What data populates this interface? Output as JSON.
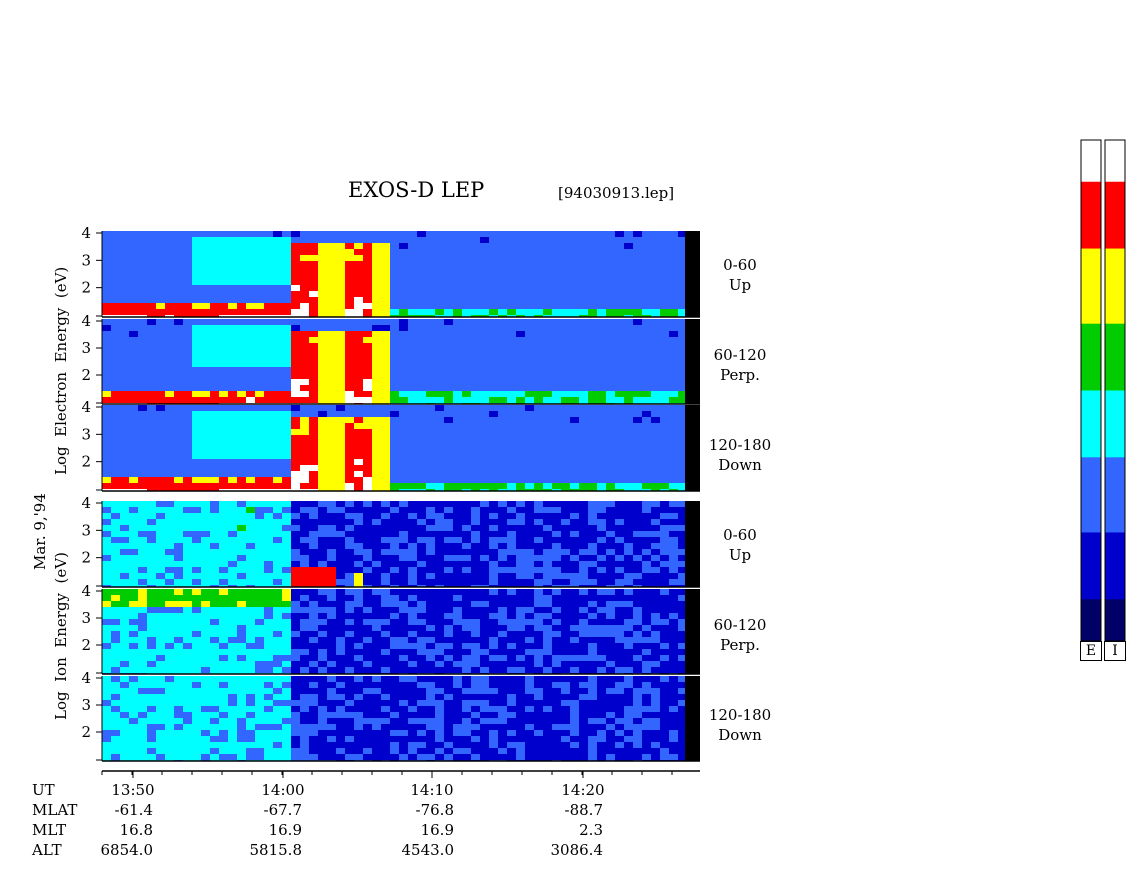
{
  "chart_data": {
    "type": "heatmap",
    "title": "EXOS-D LEP",
    "file_label": "[94030913.lep]",
    "date_label": "Mar. 9,'94",
    "electron_ylabel": "Log  Electron  Energy  (eV)",
    "ion_ylabel": "Log  Ion  Energy  (eV)",
    "y_ticks": [
      "4",
      "3",
      "2"
    ],
    "ylim": [
      1,
      4
    ],
    "panels": [
      {
        "species": "Electron",
        "pitch": "0-60",
        "direction": "Up"
      },
      {
        "species": "Electron",
        "pitch": "60-120",
        "direction": "Perp."
      },
      {
        "species": "Electron",
        "pitch": "120-180",
        "direction": "Down"
      },
      {
        "species": "Ion",
        "pitch": "0-60",
        "direction": "Up"
      },
      {
        "species": "Ion",
        "pitch": "60-120",
        "direction": "Perp."
      },
      {
        "species": "Ion",
        "pitch": "120-180",
        "direction": "Down"
      }
    ],
    "x_axis": {
      "tick_labels": [
        "13:50",
        "14:00",
        "14:10",
        "14:20"
      ],
      "rows": [
        {
          "label": "UT",
          "values": []
        },
        {
          "label": "MLAT",
          "values": [
            "-61.4",
            "-67.7",
            "-76.8",
            "-88.7"
          ]
        },
        {
          "label": "MLT",
          "values": [
            "16.8",
            "16.9",
            "16.9",
            "2.3"
          ]
        },
        {
          "label": "ALT",
          "values": [
            "6854.0",
            "5815.8",
            "4543.0",
            "3086.4"
          ]
        }
      ]
    },
    "colorbar_labels": [
      "E",
      "I"
    ],
    "colors": {
      "background": "#0a1a9e",
      "colormap": [
        "#ffffff",
        "#ff0000",
        "#ffff00",
        "#00cc00",
        "#00ffff",
        "#3366ff",
        "#0000cc",
        "#000066"
      ]
    }
  }
}
